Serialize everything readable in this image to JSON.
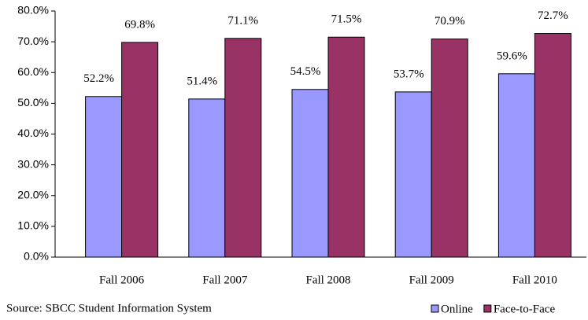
{
  "chart_data": {
    "type": "bar",
    "source": "Source: SBCC Student Information System",
    "categories": [
      "Fall 2006",
      "Fall 2007",
      "Fall 2008",
      "Fall 2009",
      "Fall 2010"
    ],
    "series": [
      {
        "name": "Online",
        "color": "#9999ff",
        "values": [
          52.2,
          51.4,
          54.5,
          53.7,
          59.6
        ],
        "value_labels": [
          "52.2%",
          "51.4%",
          "54.5%",
          "53.7%",
          "59.6%"
        ]
      },
      {
        "name": "Face-to-Face",
        "color": "#993366",
        "values": [
          69.8,
          71.1,
          71.5,
          70.9,
          72.7
        ],
        "value_labels": [
          "69.8%",
          "71.1%",
          "71.5%",
          "70.9%",
          "72.7%"
        ]
      }
    ],
    "ylim": [
      0,
      80
    ],
    "yticks": [
      {
        "value": 0,
        "label": "0.0%"
      },
      {
        "value": 10,
        "label": "10.0%"
      },
      {
        "value": 20,
        "label": "20.0%"
      },
      {
        "value": 30,
        "label": "30.0%"
      },
      {
        "value": 40,
        "label": "40.0%"
      },
      {
        "value": 50,
        "label": "50.0%"
      },
      {
        "value": 60,
        "label": "60.0%"
      },
      {
        "value": 70,
        "label": "70.0%"
      },
      {
        "value": 80,
        "label": "80.0%"
      }
    ],
    "legend": "bottom-right"
  }
}
